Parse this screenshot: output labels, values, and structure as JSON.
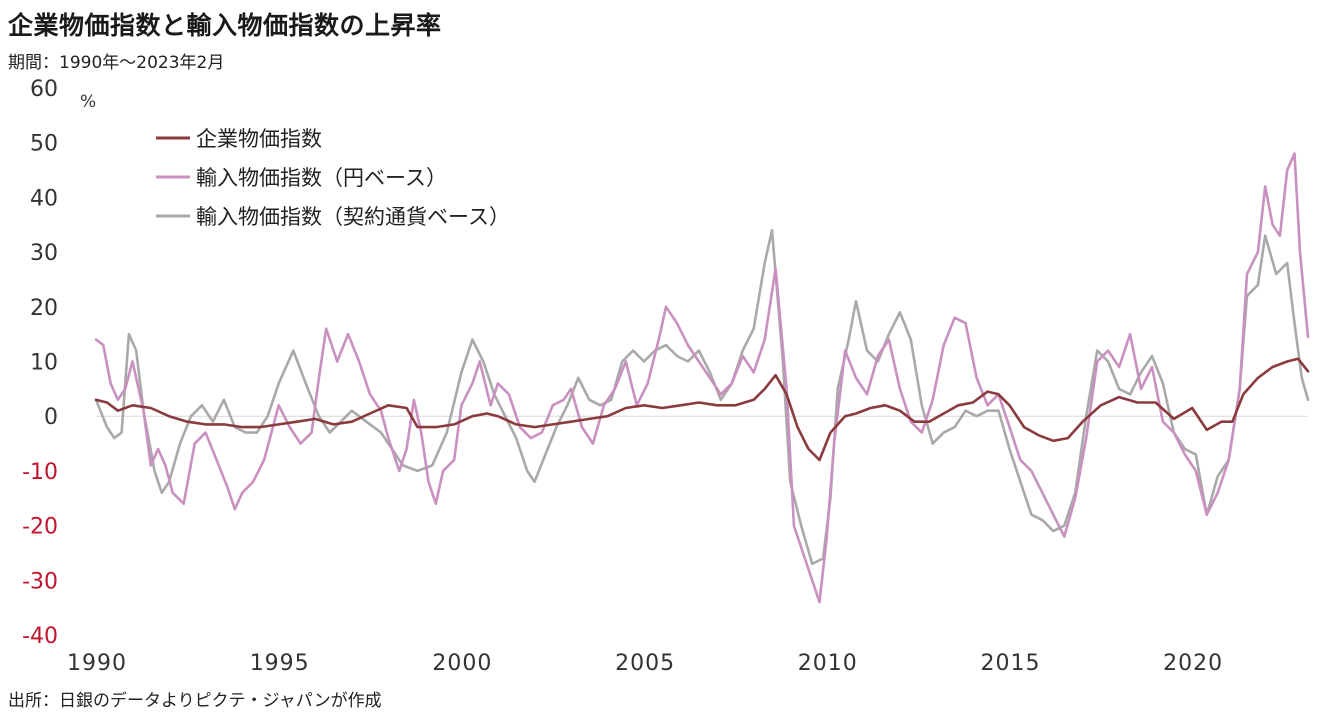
{
  "chart_data": {
    "type": "line",
    "title": "企業物価指数と輸入物価指数の上昇率",
    "subtitle": "期間：1990年～2023年2月",
    "source": "出所：日銀のデータよりピクテ・ジャパンが作成",
    "ylabel": "%",
    "ylim": [
      -40,
      60
    ],
    "yticks": [
      60,
      50,
      40,
      30,
      20,
      10,
      0,
      -10,
      -20,
      -30,
      -40
    ],
    "xlim": [
      1990,
      2023.17
    ],
    "xticks": [
      1990,
      1995,
      2000,
      2005,
      2010,
      2015,
      2020
    ],
    "legend_position": "top-left",
    "series": [
      {
        "name": "企業物価指数",
        "color": "#8b3a3e",
        "points": [
          [
            1990,
            3
          ],
          [
            1990.3,
            2.5
          ],
          [
            1990.6,
            1
          ],
          [
            1991,
            2
          ],
          [
            1991.5,
            1.5
          ],
          [
            1992,
            0
          ],
          [
            1992.5,
            -1
          ],
          [
            1993,
            -1.5
          ],
          [
            1993.5,
            -1.5
          ],
          [
            1994,
            -2
          ],
          [
            1994.5,
            -2
          ],
          [
            1995,
            -1.5
          ],
          [
            1995.5,
            -1
          ],
          [
            1996,
            -0.5
          ],
          [
            1996.5,
            -1.5
          ],
          [
            1997,
            -1
          ],
          [
            1997.5,
            0.5
          ],
          [
            1998,
            2
          ],
          [
            1998.5,
            1.5
          ],
          [
            1998.8,
            -2
          ],
          [
            1999.3,
            -2
          ],
          [
            1999.8,
            -1.5
          ],
          [
            2000.3,
            0
          ],
          [
            2000.7,
            0.5
          ],
          [
            2001,
            0
          ],
          [
            2001.5,
            -1.5
          ],
          [
            2002,
            -2
          ],
          [
            2002.5,
            -1.5
          ],
          [
            2003,
            -1
          ],
          [
            2003.5,
            -0.5
          ],
          [
            2004,
            0
          ],
          [
            2004.5,
            1.5
          ],
          [
            2005,
            2
          ],
          [
            2005.5,
            1.5
          ],
          [
            2006,
            2
          ],
          [
            2006.5,
            2.5
          ],
          [
            2007,
            2
          ],
          [
            2007.5,
            2
          ],
          [
            2008,
            3
          ],
          [
            2008.3,
            5
          ],
          [
            2008.6,
            7.5
          ],
          [
            2008.9,
            4
          ],
          [
            2009.2,
            -2
          ],
          [
            2009.5,
            -6
          ],
          [
            2009.8,
            -8
          ],
          [
            2010.1,
            -3
          ],
          [
            2010.5,
            0
          ],
          [
            2010.8,
            0.5
          ],
          [
            2011.2,
            1.5
          ],
          [
            2011.6,
            2
          ],
          [
            2012,
            1
          ],
          [
            2012.4,
            -1
          ],
          [
            2012.8,
            -1
          ],
          [
            2013.2,
            0.5
          ],
          [
            2013.6,
            2
          ],
          [
            2014,
            2.5
          ],
          [
            2014.4,
            4.5
          ],
          [
            2014.7,
            4
          ],
          [
            2015,
            2
          ],
          [
            2015.4,
            -2
          ],
          [
            2015.8,
            -3.5
          ],
          [
            2016.2,
            -4.5
          ],
          [
            2016.6,
            -4
          ],
          [
            2017,
            -1
          ],
          [
            2017.5,
            2
          ],
          [
            2018,
            3.5
          ],
          [
            2018.5,
            2.5
          ],
          [
            2019,
            2.5
          ],
          [
            2019.5,
            -0.5
          ],
          [
            2020,
            1.5
          ],
          [
            2020.4,
            -2.5
          ],
          [
            2020.8,
            -1
          ],
          [
            2021.1,
            -1
          ],
          [
            2021.4,
            4
          ],
          [
            2021.8,
            7
          ],
          [
            2022.2,
            9
          ],
          [
            2022.6,
            10
          ],
          [
            2022.9,
            10.5
          ],
          [
            2023.17,
            8.2
          ]
        ]
      },
      {
        "name": "輸入物価指数（円ベース）",
        "color": "#c990c0",
        "points": [
          [
            1990,
            14
          ],
          [
            1990.2,
            13
          ],
          [
            1990.4,
            6
          ],
          [
            1990.6,
            3
          ],
          [
            1990.8,
            5
          ],
          [
            1991,
            10
          ],
          [
            1991.3,
            1
          ],
          [
            1991.5,
            -9
          ],
          [
            1991.7,
            -6
          ],
          [
            1991.9,
            -9
          ],
          [
            1992.1,
            -14
          ],
          [
            1992.4,
            -16
          ],
          [
            1992.7,
            -5
          ],
          [
            1993,
            -3
          ],
          [
            1993.3,
            -8
          ],
          [
            1993.6,
            -13
          ],
          [
            1993.8,
            -17
          ],
          [
            1994,
            -14
          ],
          [
            1994.3,
            -12
          ],
          [
            1994.6,
            -8
          ],
          [
            1995,
            2
          ],
          [
            1995.3,
            -2
          ],
          [
            1995.6,
            -5
          ],
          [
            1995.9,
            -3
          ],
          [
            1996.1,
            7
          ],
          [
            1996.3,
            16
          ],
          [
            1996.6,
            10
          ],
          [
            1996.9,
            15
          ],
          [
            1997.2,
            10
          ],
          [
            1997.5,
            4
          ],
          [
            1997.8,
            1
          ],
          [
            1998,
            -4
          ],
          [
            1998.3,
            -10
          ],
          [
            1998.5,
            -6
          ],
          [
            1998.7,
            3
          ],
          [
            1998.9,
            -3
          ],
          [
            1999.1,
            -12
          ],
          [
            1999.3,
            -16
          ],
          [
            1999.5,
            -10
          ],
          [
            1999.8,
            -8
          ],
          [
            2000,
            2
          ],
          [
            2000.3,
            6
          ],
          [
            2000.5,
            10
          ],
          [
            2000.8,
            2
          ],
          [
            2001,
            6
          ],
          [
            2001.3,
            4
          ],
          [
            2001.6,
            -2
          ],
          [
            2001.9,
            -4
          ],
          [
            2002.2,
            -3
          ],
          [
            2002.5,
            2
          ],
          [
            2002.8,
            3
          ],
          [
            2003,
            5
          ],
          [
            2003.3,
            -2
          ],
          [
            2003.6,
            -5
          ],
          [
            2003.9,
            2
          ],
          [
            2004.2,
            5
          ],
          [
            2004.5,
            10
          ],
          [
            2004.8,
            2
          ],
          [
            2005.1,
            6
          ],
          [
            2005.4,
            14
          ],
          [
            2005.6,
            20
          ],
          [
            2005.9,
            17
          ],
          [
            2006.2,
            13
          ],
          [
            2006.5,
            10
          ],
          [
            2006.8,
            7
          ],
          [
            2007.1,
            4
          ],
          [
            2007.4,
            6
          ],
          [
            2007.7,
            11
          ],
          [
            2008,
            8
          ],
          [
            2008.3,
            14
          ],
          [
            2008.6,
            27
          ],
          [
            2008.9,
            5
          ],
          [
            2009.1,
            -20
          ],
          [
            2009.3,
            -24
          ],
          [
            2009.6,
            -30
          ],
          [
            2009.8,
            -34
          ],
          [
            2010,
            -22
          ],
          [
            2010.2,
            -5
          ],
          [
            2010.5,
            12
          ],
          [
            2010.8,
            7
          ],
          [
            2011.1,
            4
          ],
          [
            2011.4,
            11
          ],
          [
            2011.7,
            14
          ],
          [
            2012,
            5
          ],
          [
            2012.3,
            -1
          ],
          [
            2012.6,
            -3
          ],
          [
            2012.9,
            3
          ],
          [
            2013.2,
            13
          ],
          [
            2013.5,
            18
          ],
          [
            2013.8,
            17
          ],
          [
            2014.1,
            7
          ],
          [
            2014.4,
            2
          ],
          [
            2014.7,
            4
          ],
          [
            2015,
            -2
          ],
          [
            2015.3,
            -8
          ],
          [
            2015.6,
            -10
          ],
          [
            2015.9,
            -14
          ],
          [
            2016.2,
            -18
          ],
          [
            2016.5,
            -22
          ],
          [
            2016.8,
            -15
          ],
          [
            2017.1,
            -4
          ],
          [
            2017.4,
            10
          ],
          [
            2017.7,
            12
          ],
          [
            2018,
            9
          ],
          [
            2018.3,
            15
          ],
          [
            2018.6,
            5
          ],
          [
            2018.9,
            9
          ],
          [
            2019.2,
            -1
          ],
          [
            2019.5,
            -3
          ],
          [
            2019.8,
            -7
          ],
          [
            2020.1,
            -10
          ],
          [
            2020.4,
            -18
          ],
          [
            2020.7,
            -14
          ],
          [
            2021,
            -8
          ],
          [
            2021.3,
            5
          ],
          [
            2021.5,
            26
          ],
          [
            2021.8,
            30
          ],
          [
            2022,
            42
          ],
          [
            2022.2,
            35
          ],
          [
            2022.4,
            33
          ],
          [
            2022.6,
            45
          ],
          [
            2022.8,
            48
          ],
          [
            2022.95,
            30
          ],
          [
            2023.17,
            14.5
          ]
        ]
      },
      {
        "name": "輸入物価指数（契約通貨ベース）",
        "color": "#a9a9a9",
        "points": [
          [
            1990,
            3
          ],
          [
            1990.3,
            -2
          ],
          [
            1990.5,
            -4
          ],
          [
            1990.7,
            -3
          ],
          [
            1990.9,
            15
          ],
          [
            1991.1,
            12
          ],
          [
            1991.3,
            1
          ],
          [
            1991.6,
            -10
          ],
          [
            1991.8,
            -14
          ],
          [
            1992,
            -12
          ],
          [
            1992.3,
            -5
          ],
          [
            1992.6,
            0
          ],
          [
            1992.9,
            2
          ],
          [
            1993.2,
            -1
          ],
          [
            1993.5,
            3
          ],
          [
            1993.8,
            -2
          ],
          [
            1994.1,
            -3
          ],
          [
            1994.4,
            -3
          ],
          [
            1994.7,
            0
          ],
          [
            1995,
            6
          ],
          [
            1995.4,
            12
          ],
          [
            1995.8,
            5
          ],
          [
            1996.1,
            0
          ],
          [
            1996.4,
            -3
          ],
          [
            1996.7,
            -1
          ],
          [
            1997,
            1
          ],
          [
            1997.4,
            -1
          ],
          [
            1997.8,
            -3
          ],
          [
            1998.1,
            -6
          ],
          [
            1998.4,
            -9
          ],
          [
            1998.8,
            -10
          ],
          [
            1999.2,
            -9
          ],
          [
            1999.6,
            -3
          ],
          [
            2000,
            8
          ],
          [
            2000.3,
            14
          ],
          [
            2000.6,
            10
          ],
          [
            2000.9,
            4
          ],
          [
            2001.2,
            0
          ],
          [
            2001.5,
            -4
          ],
          [
            2001.8,
            -10
          ],
          [
            2002,
            -12
          ],
          [
            2002.3,
            -7
          ],
          [
            2002.6,
            -2
          ],
          [
            2002.9,
            2
          ],
          [
            2003.2,
            7
          ],
          [
            2003.5,
            3
          ],
          [
            2003.8,
            2
          ],
          [
            2004.1,
            3
          ],
          [
            2004.4,
            10
          ],
          [
            2004.7,
            12
          ],
          [
            2005,
            10
          ],
          [
            2005.3,
            12
          ],
          [
            2005.6,
            13
          ],
          [
            2005.9,
            11
          ],
          [
            2006.2,
            10
          ],
          [
            2006.5,
            12
          ],
          [
            2006.8,
            8
          ],
          [
            2007.1,
            3
          ],
          [
            2007.4,
            6
          ],
          [
            2007.7,
            12
          ],
          [
            2008,
            16
          ],
          [
            2008.3,
            28
          ],
          [
            2008.5,
            34
          ],
          [
            2008.8,
            10
          ],
          [
            2009,
            -12
          ],
          [
            2009.3,
            -20
          ],
          [
            2009.6,
            -27
          ],
          [
            2009.9,
            -26
          ],
          [
            2010.1,
            -15
          ],
          [
            2010.3,
            5
          ],
          [
            2010.6,
            14
          ],
          [
            2010.8,
            21
          ],
          [
            2011.1,
            12
          ],
          [
            2011.4,
            10
          ],
          [
            2011.7,
            15
          ],
          [
            2012,
            19
          ],
          [
            2012.3,
            14
          ],
          [
            2012.6,
            2
          ],
          [
            2012.9,
            -5
          ],
          [
            2013.2,
            -3
          ],
          [
            2013.5,
            -2
          ],
          [
            2013.8,
            1
          ],
          [
            2014.1,
            0
          ],
          [
            2014.4,
            1
          ],
          [
            2014.7,
            1
          ],
          [
            2015,
            -6
          ],
          [
            2015.3,
            -12
          ],
          [
            2015.6,
            -18
          ],
          [
            2015.9,
            -19
          ],
          [
            2016.2,
            -21
          ],
          [
            2016.5,
            -20
          ],
          [
            2016.8,
            -14
          ],
          [
            2017.1,
            0
          ],
          [
            2017.4,
            12
          ],
          [
            2017.7,
            10
          ],
          [
            2018,
            5
          ],
          [
            2018.3,
            4
          ],
          [
            2018.6,
            8
          ],
          [
            2018.9,
            11
          ],
          [
            2019.2,
            6
          ],
          [
            2019.5,
            -3
          ],
          [
            2019.8,
            -6
          ],
          [
            2020.1,
            -7
          ],
          [
            2020.4,
            -18
          ],
          [
            2020.7,
            -11
          ],
          [
            2021,
            -8
          ],
          [
            2021.3,
            5
          ],
          [
            2021.5,
            22
          ],
          [
            2021.8,
            24
          ],
          [
            2022,
            33
          ],
          [
            2022.3,
            26
          ],
          [
            2022.6,
            28
          ],
          [
            2022.8,
            17
          ],
          [
            2023,
            7
          ],
          [
            2023.17,
            3
          ]
        ]
      }
    ]
  }
}
